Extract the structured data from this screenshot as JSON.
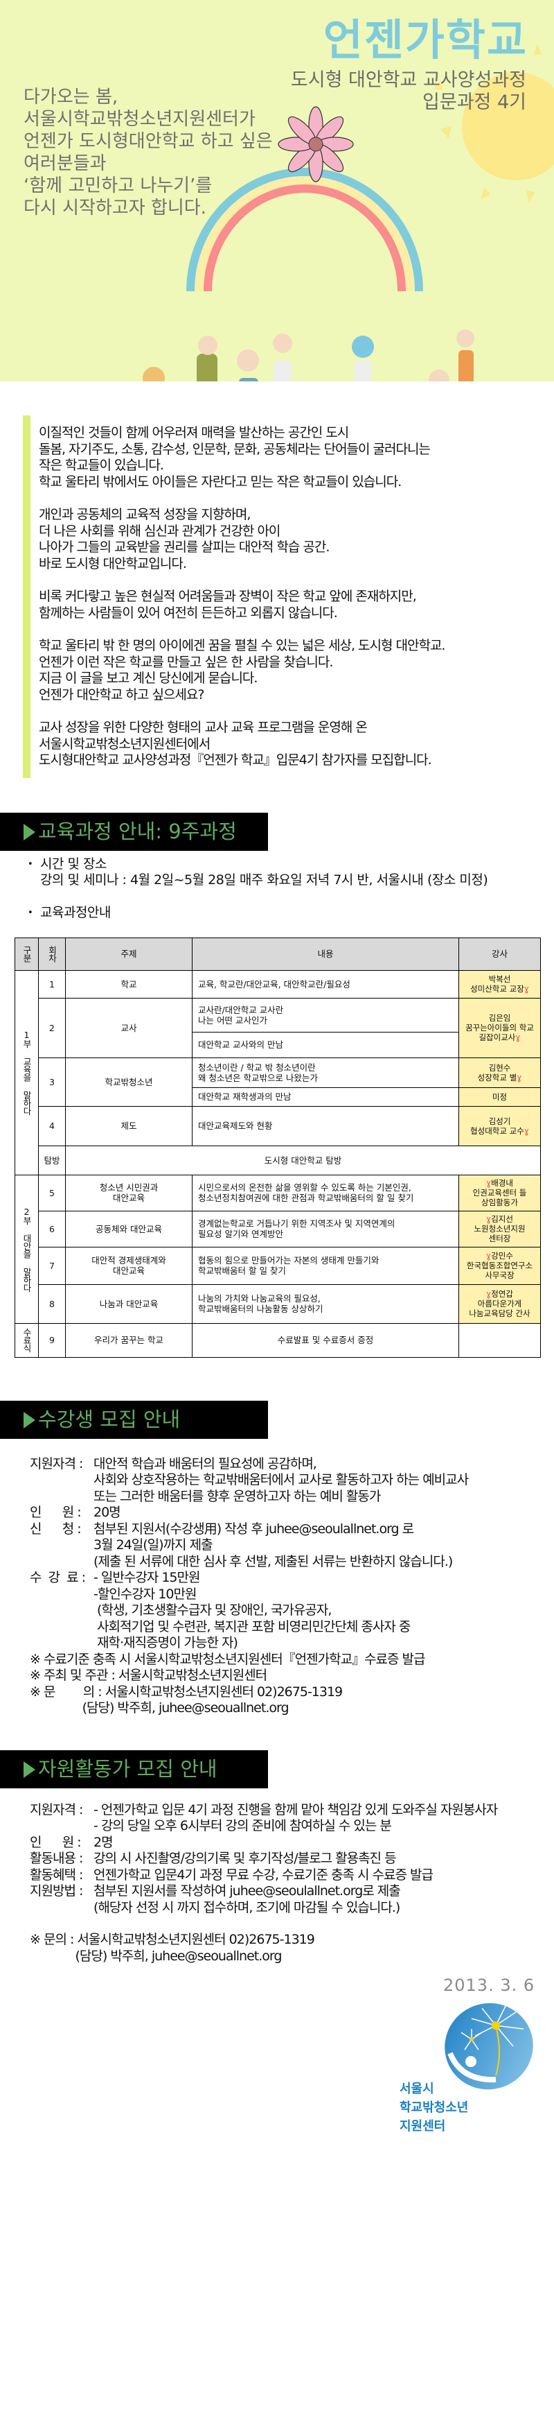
{
  "hero": {
    "title": "언젠가학교",
    "subtitle": "도시형 대안학교 교사양성과정\n입문과정 4기",
    "lead": "다가오는 봄,\n서울시학교밖청소년지원센터가\n언젠가 도시형대안학교 하고 싶은\n여러분들과\n‘함께 고민하고 나누기’를\n다시 시작하고자 합니다.",
    "colors": {
      "background": "#eff8b8",
      "title": "#7fcbdc",
      "rainbow": [
        "#7fcbdc",
        "#fbeea6",
        "#f98c8c"
      ]
    }
  },
  "intro": {
    "accent_color": "#dcef7a",
    "paragraphs": [
      "이질적인 것들이 함께 어우러져 매력을 발산하는 공간인 도시\n돌봄, 자기주도, 소통, 감수성, 인문학, 문화, 공동체라는 단어들이 굴러다니는\n작은 학교들이 있습니다.\n학교 울타리 밖에서도 아이들은 자란다고 믿는 작은 학교들이 있습니다.",
      "개인과 공동체의 교육적 성장을 지향하며,\n더 나은 사회를 위해 심신과 관계가 건강한 아이\n나아가 그들의 교육받을 권리를 살피는 대안적 학습 공간.\n바로 도시형 대안학교입니다.",
      "비록 커다랗고 높은 현실적 어려움들과 장벽이 작은 학교 앞에 존재하지만,\n함께하는 사람들이 있어 여전히 든든하고 외롭지 않습니다.",
      "학교 울타리 밖 한 명의 아이에겐 꿈을 펼칠 수 있는 넓은 세상, 도시형 대안학교.\n언젠가 이런 작은 학교를 만들고 싶은 한 사람을 찾습니다.\n지금 이 글을 보고 계신 당신에게 묻습니다.\n언젠가 대안학교 하고 싶으세요?",
      "교사 성장을 위한 다양한 형태의 교사 교육 프로그램을 운영해 온\n서울시학교밖청소년지원센터에서\n도시형대안학교 교사양성과정『언젠가 학교』입문4기 참가자를 모집합니다."
    ]
  },
  "curriculum": {
    "heading": "교육과정 안내: 9주과정",
    "heading_color": "#5fae5f",
    "bullets": [
      "시간 및 장소\n강의 및 세미나 : 4월 2일~5월 28일 매주 화요일 저녁 7시 반, 서울시내 (장소 미정)",
      "교육과정안내"
    ],
    "table": {
      "headers": [
        "구분",
        "회차",
        "주제",
        "내용",
        "강사"
      ],
      "parts": [
        "1부 교육을 말하다",
        "2부 대안을 말하다",
        "수료식"
      ],
      "rows": [
        {
          "no": "1",
          "topic": "학교",
          "content": [
            "교육, 학교란/대안교육, 대안학교란/필요성"
          ],
          "instructor": [
            "박복선\n성미산학교 교장"
          ]
        },
        {
          "no": "2",
          "topic": "교사",
          "content": [
            "교사란/대안학교 교사란\n나는 어떤 교사인가",
            "대안학교 교사와의 만남"
          ],
          "instructor": [
            "김은임\n꿈꾸는아이들의 학교\n길잡이교사"
          ]
        },
        {
          "no": "3",
          "topic": "학교밖청소년",
          "content": [
            "청소년이란 / 학교 밖 청소년이란\n왜 청소년은 학교밖으로 나왔는가",
            "대안학교 재학생과의 만남"
          ],
          "instructor": [
            "김현수\n성장학교 별",
            "미정"
          ]
        },
        {
          "no": "4",
          "topic": "제도",
          "content": [
            "대안교육제도와 현황"
          ],
          "instructor": [
            "김성기\n협성대학교 교수"
          ]
        },
        {
          "no": "탐방",
          "topic": "도시형 대안학교 탐방"
        },
        {
          "no": "5",
          "topic": "청소년 시민권과\n대안교육",
          "content": [
            "시민으로서의 온전한 삶을 영위할 수 있도록 하는 기본인권,\n청소년정치참여권에 대한 관점과 학교밖배움터의 할 일 찾기"
          ],
          "instructor": [
            "배경내\n인권교육센터 들\n상임활동가"
          ]
        },
        {
          "no": "6",
          "topic": "공동체와 대안교육",
          "content": [
            "경계없는학교로 거듭나기 위한 지역조사 및 지역연계의\n필요성 알기와 연계방안"
          ],
          "instructor": [
            "김지선\n노원청소년지원\n센터장"
          ]
        },
        {
          "no": "7",
          "topic": "대안적 경제생태계와\n대안교육",
          "content": [
            "협동의 힘으로 만들어가는 자본의 생태계 만들기와\n학교밖배움터 할 일 찾기"
          ],
          "instructor": [
            "강민수\n한국협동조합연구소\n사무국장"
          ]
        },
        {
          "no": "8",
          "topic": "나눔과 대안교육",
          "content": [
            "나눔의 가치와 나눔교육의 필요성,\n학교밖배움터의 나눔활동 상상하기"
          ],
          "instructor": [
            "정연갑\n아름다운가게\n나눔교육담당 간사"
          ]
        },
        {
          "no": "9",
          "topic": "우리가 꿈꾸는 학교",
          "content": [
            "수료발표 및 수료증서 증정"
          ],
          "instructor": [
            ""
          ]
        }
      ],
      "header_bg": "#d9d9d9",
      "instructor_bg": "#fff2b0"
    }
  },
  "students": {
    "heading": "수강생 모집 안내",
    "items": [
      {
        "label": "지원자격 : ",
        "value": "대안적 학습과 배움터의 필요성에 공감하며,\n사회와 상호작용하는 학교밖배움터에서 교사로 활동하고자 하는 예비교사\n또는 그러한 배움터를 향후 운영하고자 하는 예비 활동가"
      },
      {
        "label": "인      원 : ",
        "value": "20명"
      },
      {
        "label": "신      청 : ",
        "value": "첨부된 지원서(수강생用) 작성 후 juhee@seoulallnet.org 로\n3월 24일(일)까지 제출\n(제출 된 서류에 대한 심사 후 선발, 제출된 서류는 반환하지 않습니다.)"
      },
      {
        "label": "수  강  료 : ",
        "value": "- 일반수강자 15만원\n-할인수강자 10만원\n (학생, 기초생활수급자 및 장애인, 국가유공자,\n 사회적기업 및 수련관, 복지관 포함 비영리민간단체 종사자 중\n 재학·재직증명이 가능한 자)"
      }
    ],
    "notes": [
      "※ 수료기준 충족 시 서울시학교밖청소년지원센터『언젠가학교』수료증 발급",
      "※ 주최 및 주관 : 서울시학교밖청소년지원센터",
      "※ 문        의 : 서울시학교밖청소년지원센터 02)2675-1319\n               (담당) 박주희, juhee@seouallnet.org"
    ]
  },
  "volunteers": {
    "heading": "자원활동가 모집 안내",
    "items": [
      {
        "label": "지원자격 : ",
        "value": "- 언젠가학교 입문 4기 과정 진행을 함께 맡아 책임감 있게 도와주실 자원봉사자\n- 강의 당일 오후 6시부터 강의 준비에 참여하실 수 있는 분"
      },
      {
        "label": "인      원 : ",
        "value": "2명"
      },
      {
        "label": "활동내용 : ",
        "value": "강의 시 사진촬영/강의기록 및 후기작성/블로그 활용촉진 등"
      },
      {
        "label": "활동혜택 : ",
        "value": "언젠가학교 입문4기 과정 무료 수강, 수료기준 충족 시 수료증 발급"
      },
      {
        "label": "지원방법 : ",
        "value": "첨부된 지원서를 작성하여 juhee@seoulallnet.org로 제출\n(해당자 선정 시 까지 접수하며, 조기에 마감될 수 있습니다.)"
      }
    ],
    "notes": [
      "※ 문의 : 서울시학교밖청소년지원센터 02)2675-1319\n             (담당) 박주희, juhee@seouallnet.org"
    ]
  },
  "footer": {
    "date": "2013. 3. 6",
    "logo_text": "서울시\n학교밖청소년\n지원센터",
    "logo_color": "#1a7fc4"
  }
}
